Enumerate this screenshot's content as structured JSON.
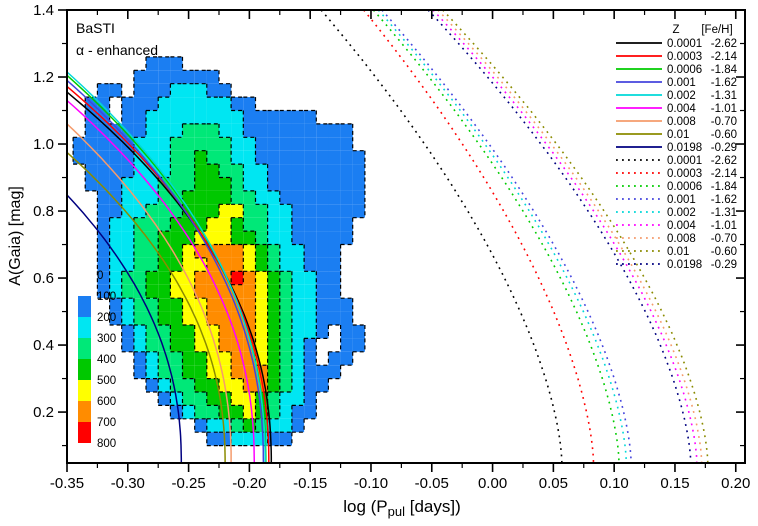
{
  "figure": {
    "annotations": {
      "model": "BaSTI",
      "alpha": "α - enhanced"
    },
    "xlabel": {
      "pre": "log (P",
      "sub": "pul",
      "post": " [days])"
    },
    "ylabel": "A(Gaia) [mag]"
  },
  "chart_data": {
    "type": "heatmap",
    "title": "",
    "xlabel": "log (Ppul [days])",
    "ylabel": "A(Gaia) [mag]",
    "xlim": [
      -0.35,
      0.2076
    ],
    "ylim": [
      0.048,
      1.4
    ],
    "grid": "off",
    "legend_position": "top-right-inside",
    "x_major_ticks": [
      "-0.35",
      "-0.30",
      "-0.25",
      "-0.20",
      "-0.15",
      "-0.10",
      "-0.05",
      "0.00",
      "0.05",
      "0.10",
      "0.15",
      "0.20"
    ],
    "x_major_values": [
      -0.35,
      -0.3,
      -0.25,
      -0.2,
      -0.15,
      -0.1,
      -0.05,
      0.0,
      0.05,
      0.1,
      0.15,
      0.2
    ],
    "y_major_ticks": [
      "1.4",
      "1.2",
      "1.0",
      "0.8",
      "0.6",
      "0.4",
      "0.2"
    ],
    "y_major_values": [
      1.4,
      1.2,
      1.0,
      0.8,
      0.6,
      0.4,
      0.2
    ],
    "x_minor_start": -0.325,
    "x_minor_step": 0.05,
    "y_minor_start": 0.1,
    "y_minor_step": 0.2,
    "density_map": {
      "description": "number of stars per cell (approximate reconstruction)",
      "levels": [
        0,
        100,
        200,
        300,
        400,
        500,
        600,
        700,
        800
      ],
      "level_colors": {
        "1": "#1B7EF2",
        "2": "#00E6F2",
        "3": "#00E878",
        "4": "#00C800",
        "5": "#FFFF00",
        "6": "#FF8C00",
        "7": "#FF0000"
      },
      "x_origin": -0.345,
      "dx": 0.01,
      "a_top": 1.3,
      "dy": 0.04,
      "grid_rows": [
        "000000000000000000000000",
        "000000111000000000000000",
        "000001111111000000000000",
        "001101112221100000000000",
        "011011122222211000000000",
        "011011222222221111110000",
        "011111222333221111111110",
        "111112223333322111111110",
        "111112223343322111111111",
        "011112223344332211111111",
        "011122233344432211111111",
        "001122233444433221111111",
        "001122333444553322111111",
        "001223334445543322111110",
        "001223344455544322111110",
        "001223344566665432211100",
        "001223344556665432211100",
        "001233445566676543221100",
        "001233445566666543221100",
        "000123344556666543221110",
        "000123344556666543221110",
        "000012334455666543221011",
        "000012334455666543210011",
        "000001233445566543210110",
        "000001233445566643211100",
        "000000123344556643211000",
        "000000012334455432210000",
        "000000001233445432110000",
        "000000000012234322100000",
        "000000000001122211000000"
      ]
    },
    "colorbar": {
      "labels": [
        "0",
        "100",
        "200",
        "300",
        "400",
        "500",
        "600",
        "700",
        "800"
      ],
      "colors": [
        "#1B7EF2",
        "#00E6F2",
        "#00E878",
        "#00C800",
        "#FFFF00",
        "#FF8C00",
        "#FF0000"
      ]
    },
    "legend": {
      "col1_header": "Z",
      "col2_header": "[Fe/H]",
      "entries": [
        {
          "style": "solid",
          "color": "#000000",
          "z": "0.0001",
          "feh": "-2.62"
        },
        {
          "style": "solid",
          "color": "#FF0000",
          "z": "0.0003",
          "feh": "-2.14"
        },
        {
          "style": "solid",
          "color": "#00CC00",
          "z": "0.0006",
          "feh": "-1.84"
        },
        {
          "style": "solid",
          "color": "#4444DD",
          "z": "0.001",
          "feh": "-1.62"
        },
        {
          "style": "solid",
          "color": "#00D8D8",
          "z": "0.002",
          "feh": "-1.31"
        },
        {
          "style": "solid",
          "color": "#FF00FF",
          "z": "0.004",
          "feh": "-1.01"
        },
        {
          "style": "solid",
          "color": "#F59B6C",
          "z": "0.008",
          "feh": "-0.70"
        },
        {
          "style": "solid",
          "color": "#8B8B00",
          "z": "0.01",
          "feh": "-0.60"
        },
        {
          "style": "solid",
          "color": "#000080",
          "z": "0.0198",
          "feh": "-0.29"
        },
        {
          "style": "dotted",
          "color": "#000000",
          "z": "0.0001",
          "feh": "-2.62"
        },
        {
          "style": "dotted",
          "color": "#FF0000",
          "z": "0.0003",
          "feh": "-2.14"
        },
        {
          "style": "dotted",
          "color": "#00CC00",
          "z": "0.0006",
          "feh": "-1.84"
        },
        {
          "style": "dotted",
          "color": "#4444DD",
          "z": "0.001",
          "feh": "-1.62"
        },
        {
          "style": "dotted",
          "color": "#00D8D8",
          "z": "0.002",
          "feh": "-1.31"
        },
        {
          "style": "dotted",
          "color": "#FF00FF",
          "z": "0.004",
          "feh": "-1.01"
        },
        {
          "style": "dotted",
          "color": "#F59B6C",
          "z": "0.008",
          "feh": "-0.70"
        },
        {
          "style": "dotted",
          "color": "#8B8B00",
          "z": "0.01",
          "feh": "-0.60"
        },
        {
          "style": "dotted",
          "color": "#000080",
          "z": "0.0198",
          "feh": "-0.29"
        }
      ]
    },
    "solid_curves": [
      {
        "z": "0.0001",
        "color": "#000000",
        "a_at_left": 1.155,
        "x_at_bottom": -0.182
      },
      {
        "z": "0.0003",
        "color": "#FF0000",
        "a_at_left": 1.172,
        "x_at_bottom": -0.184
      },
      {
        "z": "0.0006",
        "color": "#00CC00",
        "a_at_left": 1.205,
        "x_at_bottom": -0.1865
      },
      {
        "z": "0.001",
        "color": "#4444DD",
        "a_at_left": 1.19,
        "x_at_bottom": -0.1885
      },
      {
        "z": "0.002",
        "color": "#00D8D8",
        "a_at_left": 1.215,
        "x_at_bottom": -0.187
      },
      {
        "z": "0.004",
        "color": "#FF00FF",
        "a_at_left": 1.13,
        "x_at_bottom": -0.196
      },
      {
        "z": "0.008",
        "color": "#F59B6C",
        "a_at_left": 1.06,
        "x_at_bottom": -0.215
      },
      {
        "z": "0.01",
        "color": "#8B8B00",
        "a_at_left": 0.975,
        "x_at_bottom": -0.22
      },
      {
        "z": "0.0198",
        "color": "#000080",
        "a_at_left": 0.848,
        "x_at_bottom": -0.256
      }
    ],
    "dotted_curves": [
      {
        "z": "0.0001",
        "color": "#000000",
        "x_at_top": -0.141,
        "x_at_bottom": 0.057
      },
      {
        "z": "0.0003",
        "color": "#FF0000",
        "x_at_top": -0.106,
        "x_at_bottom": 0.083
      },
      {
        "z": "0.0006",
        "color": "#00CC00",
        "x_at_top": -0.098,
        "x_at_bottom": 0.104
      },
      {
        "z": "0.001",
        "color": "#4444DD",
        "x_at_top": -0.091,
        "x_at_bottom": 0.114
      },
      {
        "z": "0.002",
        "color": "#00D8D8",
        "x_at_top": -0.094,
        "x_at_bottom": 0.11
      },
      {
        "z": "0.004",
        "color": "#FF00FF",
        "x_at_top": -0.049,
        "x_at_bottom": 0.168
      },
      {
        "z": "0.008",
        "color": "#F59B6C",
        "x_at_top": -0.045,
        "x_at_bottom": 0.172
      },
      {
        "z": "0.01",
        "color": "#8B8B00",
        "x_at_top": -0.041,
        "x_at_bottom": 0.177
      },
      {
        "z": "0.0198",
        "color": "#000080",
        "x_at_top": -0.053,
        "x_at_bottom": 0.163
      }
    ]
  }
}
